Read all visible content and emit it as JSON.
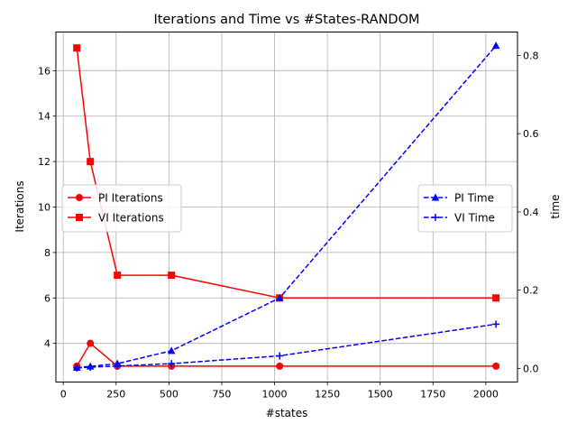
{
  "chart_data": {
    "type": "line",
    "title": "Iterations and Time vs #States-RANDOM",
    "xlabel": "#states",
    "ylabel_left": "Iterations",
    "ylabel_right": "time",
    "xlim": [
      -35,
      2150
    ],
    "ylim_left": [
      2.3,
      17.7
    ],
    "ylim_right": [
      -0.035,
      0.86
    ],
    "x_ticks": [
      0,
      250,
      500,
      750,
      1000,
      1250,
      1500,
      1750,
      2000
    ],
    "y_left_ticks": [
      4,
      6,
      8,
      10,
      12,
      14,
      16
    ],
    "y_right_ticks": [
      0.0,
      0.2,
      0.4,
      0.6,
      0.8
    ],
    "x_tick_labels": [
      "0",
      "250",
      "500",
      "750",
      "1000",
      "1250",
      "1500",
      "1750",
      "2000"
    ],
    "y_left_tick_labels": [
      "4",
      "6",
      "8",
      "10",
      "12",
      "14",
      "16"
    ],
    "y_right_tick_labels": [
      "0.0",
      "0.2",
      "0.4",
      "0.6",
      "0.8"
    ],
    "grid": true,
    "x": [
      64,
      128,
      256,
      512,
      1024,
      2048
    ],
    "series": [
      {
        "name": "PI Iterations",
        "axis": "left",
        "color": "#ff0000",
        "linestyle": "solid",
        "marker": "circle",
        "values": [
          3,
          4,
          3,
          3,
          3,
          3
        ]
      },
      {
        "name": "VI Iterations",
        "axis": "left",
        "color": "#ff0000",
        "linestyle": "solid",
        "marker": "square",
        "values": [
          17,
          12,
          7,
          7,
          6,
          6
        ]
      },
      {
        "name": "PI Time",
        "axis": "right",
        "color": "#0000ff",
        "linestyle": "dashed",
        "marker": "triangle",
        "values": [
          0.002,
          0.005,
          0.012,
          0.045,
          0.18,
          0.825
        ]
      },
      {
        "name": "VI Time",
        "axis": "right",
        "color": "#0000ff",
        "linestyle": "dashed",
        "marker": "plus",
        "values": [
          0.001,
          0.003,
          0.006,
          0.012,
          0.032,
          0.113
        ]
      }
    ],
    "legends": [
      {
        "placement": "center-left",
        "series": [
          "PI Iterations",
          "VI Iterations"
        ]
      },
      {
        "placement": "center-right",
        "series": [
          "PI Time",
          "VI Time"
        ]
      }
    ]
  }
}
